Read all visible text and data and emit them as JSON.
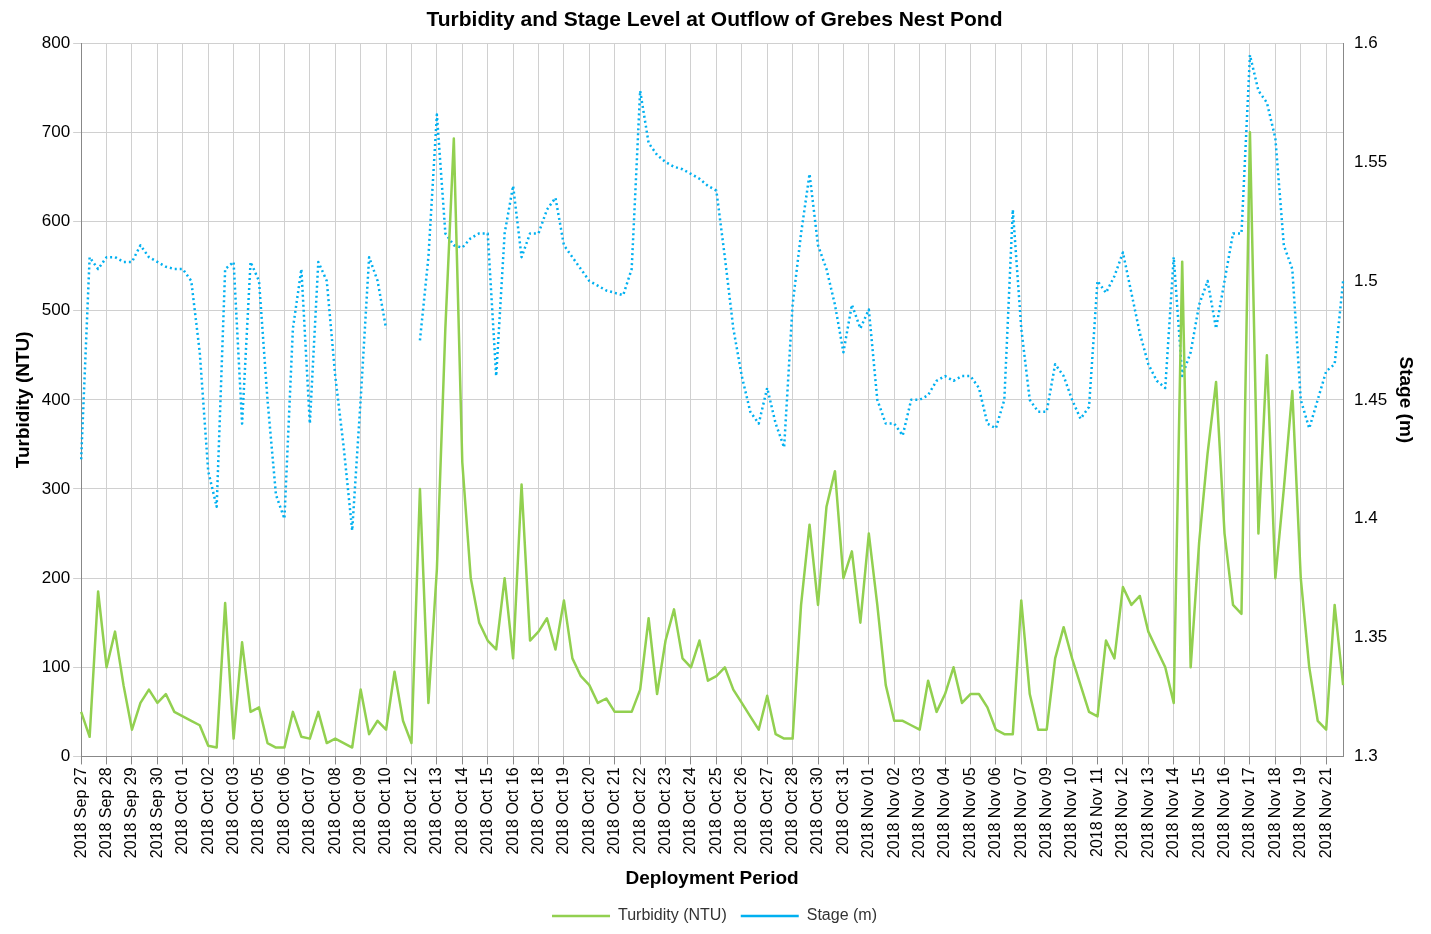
{
  "chart_data": {
    "type": "line",
    "title": "Turbidity and Stage Level at Outflow of Grebes Nest Pond",
    "xlabel": "Deployment Period",
    "ylabel": "Turbidity (NTU)",
    "y2label": "Stage (m)",
    "categories": [
      "2018 Sep 27",
      null,
      null,
      "2018 Sep 28",
      null,
      null,
      "2018 Sep 29",
      null,
      null,
      "2018 Sep 30",
      null,
      null,
      "2018 Oct 01",
      null,
      null,
      "2018 Oct 02",
      null,
      null,
      "2018 Oct 03",
      null,
      null,
      "2018 Oct 05",
      null,
      null,
      "2018 Oct 06",
      null,
      null,
      "2018 Oct 07",
      null,
      null,
      "2018 Oct 08",
      null,
      null,
      "2018 Oct 09",
      null,
      null,
      "2018 Oct 10",
      null,
      null,
      "2018 Oct 12",
      null,
      null,
      "2018 Oct 13",
      null,
      null,
      "2018 Oct 14",
      null,
      null,
      "2018 Oct 15",
      null,
      null,
      "2018 Oct 16",
      null,
      null,
      "2018 Oct 18",
      null,
      null,
      "2018 Oct 19",
      null,
      null,
      "2018 Oct 20",
      null,
      null,
      "2018 Oct 21",
      null,
      null,
      "2018 Oct 22",
      null,
      null,
      "2018 Oct 23",
      null,
      null,
      "2018 Oct 24",
      null,
      null,
      "2018 Oct 25",
      null,
      null,
      "2018 Oct 26",
      null,
      null,
      "2018 Oct 27",
      null,
      null,
      "2018 Oct 28",
      null,
      null,
      "2018 Oct 30",
      null,
      null,
      "2018 Oct 31",
      null,
      null,
      "2018 Nov 01",
      null,
      null,
      "2018 Nov 02",
      null,
      null,
      "2018 Nov 03",
      null,
      null,
      "2018 Nov 04",
      null,
      null,
      "2018 Nov 05",
      null,
      null,
      "2018 Nov 06",
      null,
      null,
      "2018 Nov 07",
      null,
      null,
      "2018 Nov 09",
      null,
      null,
      "2018 Nov 10",
      null,
      null,
      "2018 Nov 11",
      null,
      null,
      "2018 Nov 12",
      null,
      null,
      "2018 Nov 13",
      null,
      null,
      "2018 Nov 14",
      null,
      null,
      "2018 Nov 15",
      null,
      null,
      "2018 Nov 16",
      null,
      null,
      "2018 Nov 17",
      null,
      null,
      "2018 Nov 18",
      null,
      null,
      "2018 Nov 19",
      null,
      null,
      "2018 Nov 21",
      null,
      null
    ],
    "series": [
      {
        "name": "Turbidity (NTU)",
        "color": "#92d050",
        "line_style": "solid",
        "values": [
          50,
          22,
          185,
          100,
          140,
          80,
          30,
          60,
          75,
          60,
          70,
          50,
          45,
          40,
          35,
          12,
          10,
          172,
          20,
          128,
          50,
          55,
          15,
          10,
          10,
          50,
          22,
          20,
          50,
          15,
          20,
          15,
          10,
          75,
          25,
          40,
          30,
          95,
          40,
          15,
          300,
          60,
          210,
          480,
          693,
          330,
          200,
          150,
          130,
          120,
          200,
          110,
          305,
          130,
          140,
          155,
          120,
          175,
          110,
          90,
          80,
          60,
          65,
          50,
          50,
          50,
          75,
          155,
          70,
          130,
          165,
          110,
          100,
          130,
          85,
          90,
          100,
          75,
          60,
          45,
          30,
          68,
          25,
          20,
          20,
          170,
          260,
          170,
          280,
          320,
          200,
          230,
          150,
          250,
          170,
          80,
          40,
          40,
          35,
          30,
          85,
          50,
          70,
          100,
          60,
          70,
          70,
          55,
          30,
          25,
          25,
          175,
          70,
          30,
          30,
          110,
          145,
          110,
          80,
          50,
          45,
          130,
          110,
          190,
          170,
          180,
          140,
          120,
          100,
          60,
          555,
          100,
          240,
          340,
          420,
          250,
          170,
          160,
          700,
          250,
          450,
          200,
          300,
          410,
          200,
          100,
          40,
          30,
          170,
          80
        ]
      },
      {
        "name": "Stage (m)",
        "color": "#00b0f0",
        "axis": "y2",
        "line_style": "dotted",
        "values": [
          1.425,
          1.51,
          1.505,
          1.51,
          1.51,
          1.508,
          1.508,
          1.515,
          1.51,
          1.508,
          1.506,
          1.505,
          1.505,
          1.5,
          1.47,
          1.42,
          1.405,
          1.505,
          1.508,
          1.44,
          1.508,
          1.5,
          1.45,
          1.41,
          1.4,
          1.48,
          1.505,
          1.44,
          1.508,
          1.5,
          1.46,
          1.43,
          1.395,
          1.45,
          1.51,
          1.5,
          1.48,
          null,
          null,
          null,
          1.475,
          1.51,
          1.57,
          1.52,
          1.515,
          1.514,
          1.518,
          1.52,
          1.52,
          1.46,
          1.52,
          1.54,
          1.51,
          1.52,
          1.52,
          1.53,
          1.535,
          1.515,
          1.51,
          1.505,
          1.5,
          1.498,
          1.496,
          1.495,
          1.494,
          1.505,
          1.58,
          1.558,
          1.553,
          1.55,
          1.548,
          1.547,
          1.545,
          1.543,
          1.54,
          1.538,
          1.51,
          1.48,
          1.46,
          1.445,
          1.44,
          1.455,
          1.44,
          1.43,
          1.49,
          1.52,
          1.545,
          1.515,
          1.505,
          1.49,
          1.47,
          1.49,
          1.48,
          1.488,
          1.45,
          1.44,
          1.44,
          1.435,
          1.45,
          1.45,
          1.452,
          1.458,
          1.46,
          1.458,
          1.46,
          1.46,
          1.455,
          1.44,
          1.438,
          1.45,
          1.53,
          1.48,
          1.45,
          1.445,
          1.445,
          1.465,
          1.46,
          1.45,
          1.442,
          1.447,
          1.5,
          1.495,
          1.502,
          1.512,
          1.495,
          1.478,
          1.465,
          1.458,
          1.455,
          1.51,
          1.46,
          1.47,
          1.49,
          1.5,
          1.48,
          1.5,
          1.52,
          1.52,
          1.595,
          1.58,
          1.575,
          1.56,
          1.515,
          1.505,
          1.45,
          1.438,
          1.45,
          1.462,
          1.465,
          1.5
        ]
      }
    ],
    "ylim": [
      0,
      800
    ],
    "yticks": [
      0,
      100,
      200,
      300,
      400,
      500,
      600,
      700,
      800
    ],
    "y2lim": [
      1.3,
      1.6
    ],
    "y2ticks": [
      1.3,
      1.35,
      1.4,
      1.45,
      1.5,
      1.55,
      1.6
    ],
    "grid": true,
    "legend": "bottom",
    "marker": "none"
  }
}
